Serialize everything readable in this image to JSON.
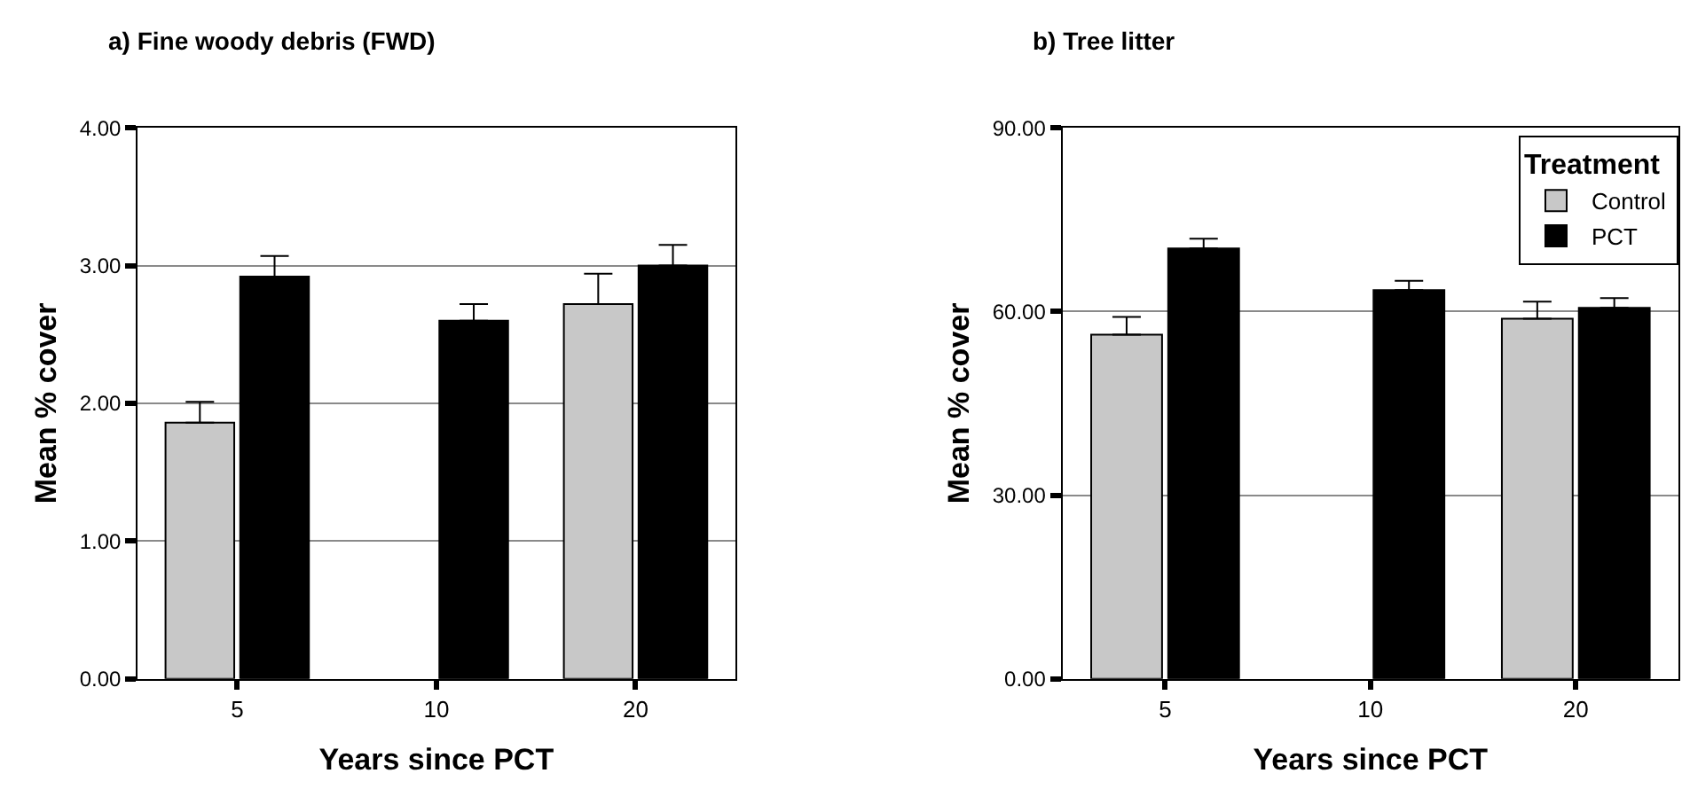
{
  "chart_data": [
    {
      "type": "bar",
      "title": "a) Fine woody debris (FWD)",
      "xlabel": "Years since PCT",
      "ylabel": "Mean % cover",
      "categories": [
        "5",
        "10",
        "20"
      ],
      "ylim": [
        0,
        4
      ],
      "yticks": [
        {
          "value": 0,
          "label": "0.00"
        },
        {
          "value": 1,
          "label": "1.00"
        },
        {
          "value": 2,
          "label": "2.00"
        },
        {
          "value": 3,
          "label": "3.00"
        },
        {
          "value": 4,
          "label": "4.00"
        }
      ],
      "grid": "y",
      "legend": false,
      "series": [
        {
          "color": "#c8c8c8",
          "values": [
            1.86,
            null,
            2.72
          ],
          "errors": [
            [
              1.86,
              2.01
            ],
            null,
            [
              2.72,
              2.94
            ]
          ]
        },
        {
          "color": "#000000",
          "values": [
            2.92,
            2.6,
            3.0
          ],
          "errors": [
            [
              2.92,
              3.07
            ],
            [
              2.6,
              2.72
            ],
            [
              3.0,
              3.15
            ]
          ]
        }
      ]
    },
    {
      "type": "bar",
      "title": "b) Tree litter",
      "xlabel": "Years since PCT",
      "ylabel": "Mean % cover",
      "legend_title": "Treatment",
      "categories": [
        "5",
        "10",
        "20"
      ],
      "ylim": [
        0,
        90
      ],
      "yticks": [
        {
          "value": 0,
          "label": "0.00"
        },
        {
          "value": 30,
          "label": "30.00"
        },
        {
          "value": 60,
          "label": "60.00"
        },
        {
          "value": 90,
          "label": "90.00"
        }
      ],
      "grid": "y",
      "legend": "top right",
      "series": [
        {
          "name": "Control",
          "color": "#c8c8c8",
          "values": [
            56.2,
            null,
            58.8
          ],
          "errors": [
            [
              56.2,
              59.1
            ],
            null,
            [
              58.8,
              61.6
            ]
          ]
        },
        {
          "name": "PCT",
          "color": "#000000",
          "values": [
            70.3,
            63.5,
            60.6
          ],
          "errors": [
            [
              70.3,
              71.9
            ],
            [
              63.5,
              65.0
            ],
            [
              60.6,
              62.2
            ]
          ]
        }
      ]
    }
  ]
}
